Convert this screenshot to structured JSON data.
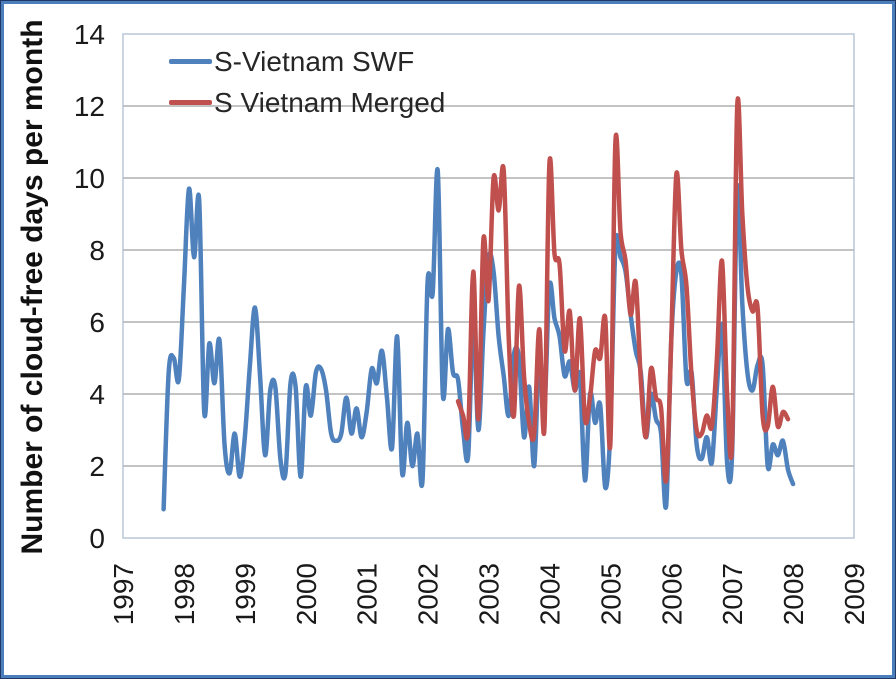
{
  "frame": {
    "outer_border_color": "#4A7EBC",
    "background_color": "#FFFFFF"
  },
  "chart_data": {
    "type": "line",
    "title": "",
    "xlabel": "",
    "ylabel": "Number of cloud-free days per month",
    "xlim": [
      1997,
      2009
    ],
    "ylim": [
      0,
      14
    ],
    "x_ticks": [
      1997,
      1998,
      1999,
      2000,
      2001,
      2002,
      2003,
      2004,
      2005,
      2006,
      2007,
      2008,
      2009
    ],
    "y_ticks": [
      0,
      2,
      4,
      6,
      8,
      10,
      12,
      14
    ],
    "grid": true,
    "gridline_color": "#878787",
    "plot_border_color": "#AFBDD1",
    "axis_text_color": "#1A1A1A",
    "legend_position": "top-left-inside",
    "smoothed_lines": true,
    "x_unit": "months",
    "series": [
      {
        "name": "S-Vietnam SWF",
        "color": "#4F81BD",
        "start_year": 1997,
        "start_month": 9,
        "values": [
          0.8,
          4.6,
          5.0,
          4.4,
          7.0,
          9.7,
          7.8,
          9.4,
          3.5,
          5.4,
          4.3,
          5.5,
          2.6,
          1.8,
          2.9,
          1.7,
          2.8,
          4.8,
          6.4,
          4.5,
          2.3,
          4.1,
          4.2,
          2.2,
          1.8,
          4.3,
          4.2,
          1.7,
          4.2,
          3.4,
          4.6,
          4.7,
          4.1,
          2.9,
          2.7,
          2.9,
          3.9,
          2.9,
          3.6,
          2.8,
          3.5,
          4.7,
          4.3,
          5.2,
          3.9,
          2.5,
          5.6,
          1.8,
          3.2,
          2.0,
          2.9,
          1.6,
          7.1,
          6.8,
          10.2,
          4.0,
          5.8,
          4.6,
          4.4,
          3.0,
          2.3,
          6.1,
          3.0,
          5.7,
          7.8,
          7.4,
          5.6,
          4.5,
          3.4,
          5.1,
          5.0,
          2.8,
          4.2,
          2.0,
          5.1,
          3.6,
          7.0,
          6.1,
          5.6,
          4.5,
          4.9,
          4.1,
          4.5,
          1.6,
          4.0,
          3.2,
          3.7,
          1.4,
          3.0,
          8.1,
          7.8,
          7.4,
          6.2,
          5.2,
          4.6,
          2.8,
          4.0,
          3.3,
          2.9,
          0.9,
          5.5,
          7.4,
          7.3,
          4.4,
          4.6,
          2.6,
          2.2,
          2.8,
          2.1,
          4.2,
          5.9,
          2.1,
          2.4,
          9.7,
          6.5,
          4.6,
          4.1,
          4.8,
          4.8,
          2.0,
          2.6,
          2.3,
          2.7,
          1.9,
          1.5
        ]
      },
      {
        "name": "S Vietnam Merged",
        "color": "#C0504D",
        "start_year": 2002,
        "start_month": 7,
        "values": [
          3.8,
          3.4,
          3.0,
          7.4,
          3.3,
          8.3,
          6.6,
          10.0,
          9.1,
          10.2,
          5.5,
          3.4,
          7.0,
          4.5,
          3.2,
          2.9,
          5.8,
          3.0,
          10.4,
          7.9,
          7.6,
          5.2,
          6.3,
          4.1,
          6.1,
          3.3,
          3.9,
          5.2,
          5.0,
          6.1,
          2.6,
          11.0,
          8.5,
          7.7,
          6.2,
          7.1,
          4.4,
          2.8,
          4.7,
          3.9,
          3.6,
          1.6,
          5.5,
          10.1,
          8.0,
          7.0,
          4.5,
          3.0,
          2.9,
          3.4,
          3.1,
          5.0,
          7.7,
          4.0,
          2.7,
          12.0,
          9.0,
          7.0,
          6.3,
          6.4,
          3.4,
          3.1,
          4.2,
          3.1,
          3.5,
          3.3
        ]
      }
    ]
  }
}
